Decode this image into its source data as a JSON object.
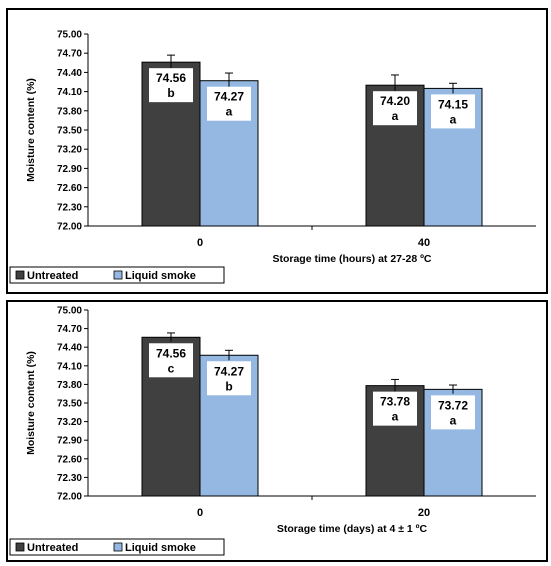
{
  "colors": {
    "untreated": "#404040",
    "liquid_smoke": "#94b8e2"
  },
  "chart_data": [
    {
      "type": "bar",
      "categories": [
        "0",
        "40"
      ],
      "series": [
        {
          "name": "Untreated",
          "values": [
            74.56,
            74.2
          ],
          "errors": [
            0.11,
            0.16
          ],
          "labels": [
            "b",
            "a"
          ]
        },
        {
          "name": "Liquid smoke",
          "values": [
            74.27,
            74.15
          ],
          "errors": [
            0.12,
            0.08
          ],
          "labels": [
            "a",
            "a"
          ]
        }
      ],
      "xlabel": "Storage time (hours) at 27-28 ºC",
      "ylabel": "Moisture content (%)",
      "ylim": [
        72.0,
        75.0
      ],
      "yticks": [
        "72.00",
        "72.30",
        "72.60",
        "72.90",
        "73.20",
        "73.50",
        "73.80",
        "74.10",
        "74.40",
        "74.70",
        "75.00"
      ],
      "legend": "bottom-left",
      "grid": false
    },
    {
      "type": "bar",
      "categories": [
        "0",
        "20"
      ],
      "series": [
        {
          "name": "Untreated",
          "values": [
            74.56,
            73.78
          ],
          "errors": [
            0.07,
            0.1
          ],
          "labels": [
            "c",
            "a"
          ]
        },
        {
          "name": "Liquid smoke",
          "values": [
            74.27,
            73.72
          ],
          "errors": [
            0.08,
            0.07
          ],
          "labels": [
            "b",
            "a"
          ]
        }
      ],
      "xlabel": "Storage time (days) at 4 ± 1 ºC",
      "ylabel": "Moisture content (%)",
      "ylim": [
        72.0,
        75.0
      ],
      "yticks": [
        "72.00",
        "72.30",
        "72.60",
        "72.90",
        "73.20",
        "73.50",
        "73.80",
        "74.10",
        "74.40",
        "74.70",
        "75.00"
      ],
      "legend": "bottom-left",
      "grid": false
    }
  ]
}
